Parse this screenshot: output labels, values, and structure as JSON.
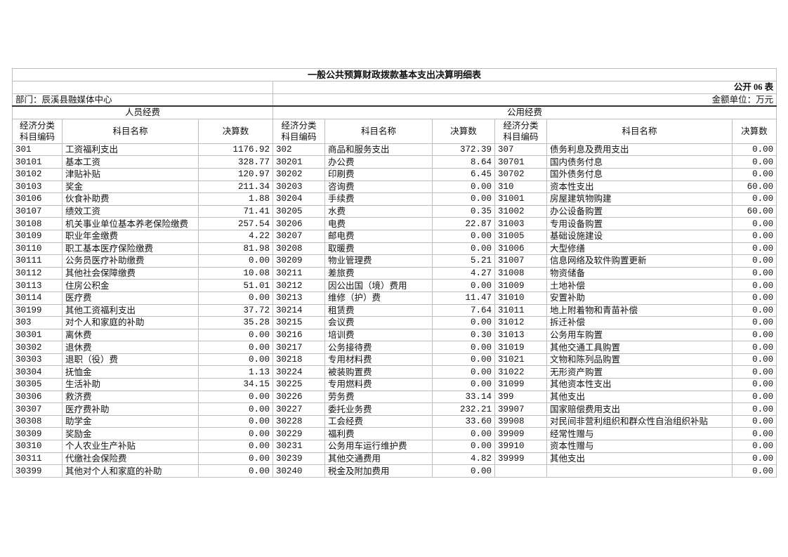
{
  "title": "一般公共预算财政拨款基本支出决算明细表",
  "table_no": "公开 06 表",
  "department": "部门：辰溪县融媒体中心",
  "unit": "金额单位：万元",
  "sections": {
    "personnel": "人员经费",
    "public": "公用经费"
  },
  "columns": {
    "code": "经济分类科目编码",
    "name": "科目名称",
    "value": "决算数"
  },
  "rows": [
    [
      [
        "301",
        "工资福利支出",
        "1176.92"
      ],
      [
        "302",
        "商品和服务支出",
        "372.39"
      ],
      [
        "307",
        "债务利息及费用支出",
        "0.00"
      ]
    ],
    [
      [
        "30101",
        "基本工资",
        "328.77"
      ],
      [
        "30201",
        "办公费",
        "8.64"
      ],
      [
        "30701",
        "国内债务付息",
        "0.00"
      ]
    ],
    [
      [
        "30102",
        "津贴补贴",
        "120.97"
      ],
      [
        "30202",
        "印刷费",
        "6.45"
      ],
      [
        "30702",
        "国外债务付息",
        "0.00"
      ]
    ],
    [
      [
        "30103",
        "奖金",
        "211.34"
      ],
      [
        "30203",
        "咨询费",
        "0.00"
      ],
      [
        "310",
        "资本性支出",
        "60.00"
      ]
    ],
    [
      [
        "30106",
        "伙食补助费",
        "1.88"
      ],
      [
        "30204",
        "手续费",
        "0.00"
      ],
      [
        "31001",
        "房屋建筑物购建",
        "0.00"
      ]
    ],
    [
      [
        "30107",
        "绩效工资",
        "71.41"
      ],
      [
        "30205",
        "水费",
        "0.35"
      ],
      [
        "31002",
        "办公设备购置",
        "60.00"
      ]
    ],
    [
      [
        "30108",
        "机关事业单位基本养老保险缴费",
        "257.54"
      ],
      [
        "30206",
        "电费",
        "22.87"
      ],
      [
        "31003",
        "专用设备购置",
        "0.00"
      ]
    ],
    [
      [
        "30109",
        "职业年金缴费",
        "4.22"
      ],
      [
        "30207",
        "邮电费",
        "0.00"
      ],
      [
        "31005",
        "基础设施建设",
        "0.00"
      ]
    ],
    [
      [
        "30110",
        "职工基本医疗保险缴费",
        "81.98"
      ],
      [
        "30208",
        "取暖费",
        "0.00"
      ],
      [
        "31006",
        "大型修缮",
        "0.00"
      ]
    ],
    [
      [
        "30111",
        "公务员医疗补助缴费",
        "0.00"
      ],
      [
        "30209",
        "物业管理费",
        "5.21"
      ],
      [
        "31007",
        "信息网络及软件购置更新",
        "0.00"
      ]
    ],
    [
      [
        "30112",
        "其他社会保障缴费",
        "10.08"
      ],
      [
        "30211",
        "差旅费",
        "4.27"
      ],
      [
        "31008",
        "物资储备",
        "0.00"
      ]
    ],
    [
      [
        "30113",
        "住房公积金",
        "51.01"
      ],
      [
        "30212",
        "因公出国（境）费用",
        "0.00"
      ],
      [
        "31009",
        "土地补偿",
        "0.00"
      ]
    ],
    [
      [
        "30114",
        "医疗费",
        "0.00"
      ],
      [
        "30213",
        "维修（护）费",
        "11.47"
      ],
      [
        "31010",
        "安置补助",
        "0.00"
      ]
    ],
    [
      [
        "30199",
        "其他工资福利支出",
        "37.72"
      ],
      [
        "30214",
        "租赁费",
        "7.64"
      ],
      [
        "31011",
        "地上附着物和青苗补偿",
        "0.00"
      ]
    ],
    [
      [
        "303",
        "对个人和家庭的补助",
        "35.28"
      ],
      [
        "30215",
        "会议费",
        "0.00"
      ],
      [
        "31012",
        "拆迁补偿",
        "0.00"
      ]
    ],
    [
      [
        "30301",
        "离休费",
        "0.00"
      ],
      [
        "30216",
        "培训费",
        "0.30"
      ],
      [
        "31013",
        "公务用车购置",
        "0.00"
      ]
    ],
    [
      [
        "30302",
        "退休费",
        "0.00"
      ],
      [
        "30217",
        "公务接待费",
        "0.00"
      ],
      [
        "31019",
        "其他交通工具购置",
        "0.00"
      ]
    ],
    [
      [
        "30303",
        "退职（役）费",
        "0.00"
      ],
      [
        "30218",
        "专用材料费",
        "0.00"
      ],
      [
        "31021",
        "文物和陈列品购置",
        "0.00"
      ]
    ],
    [
      [
        "30304",
        "抚恤金",
        "1.13"
      ],
      [
        "30224",
        "被装购置费",
        "0.00"
      ],
      [
        "31022",
        "无形资产购置",
        "0.00"
      ]
    ],
    [
      [
        "30305",
        "生活补助",
        "34.15"
      ],
      [
        "30225",
        "专用燃料费",
        "0.00"
      ],
      [
        "31099",
        "其他资本性支出",
        "0.00"
      ]
    ],
    [
      [
        "30306",
        "救济费",
        "0.00"
      ],
      [
        "30226",
        "劳务费",
        "33.14"
      ],
      [
        "399",
        "其他支出",
        "0.00"
      ]
    ],
    [
      [
        "30307",
        "医疗费补助",
        "0.00"
      ],
      [
        "30227",
        "委托业务费",
        "232.21"
      ],
      [
        "39907",
        "国家赔偿费用支出",
        "0.00"
      ]
    ],
    [
      [
        "30308",
        "助学金",
        "0.00"
      ],
      [
        "30228",
        "工会经费",
        "33.60"
      ],
      [
        "39908",
        "对民间非营利组织和群众性自治组织补贴",
        "0.00"
      ]
    ],
    [
      [
        "30309",
        "奖励金",
        "0.00"
      ],
      [
        "30229",
        "福利费",
        "0.00"
      ],
      [
        "39909",
        "经常性赠与",
        "0.00"
      ]
    ],
    [
      [
        "30310",
        "个人农业生产补贴",
        "0.00"
      ],
      [
        "30231",
        "公务用车运行维护费",
        "0.00"
      ],
      [
        "39910",
        "资本性赠与",
        "0.00"
      ]
    ],
    [
      [
        "30311",
        "代缴社会保险费",
        "0.00"
      ],
      [
        "30239",
        "其他交通费用",
        "4.82"
      ],
      [
        "39999",
        "其他支出",
        "0.00"
      ]
    ],
    [
      [
        "30399",
        "其他对个人和家庭的补助",
        "0.00"
      ],
      [
        "30240",
        "税金及附加费用",
        "0.00"
      ],
      [
        "",
        "",
        "0.00"
      ]
    ]
  ]
}
